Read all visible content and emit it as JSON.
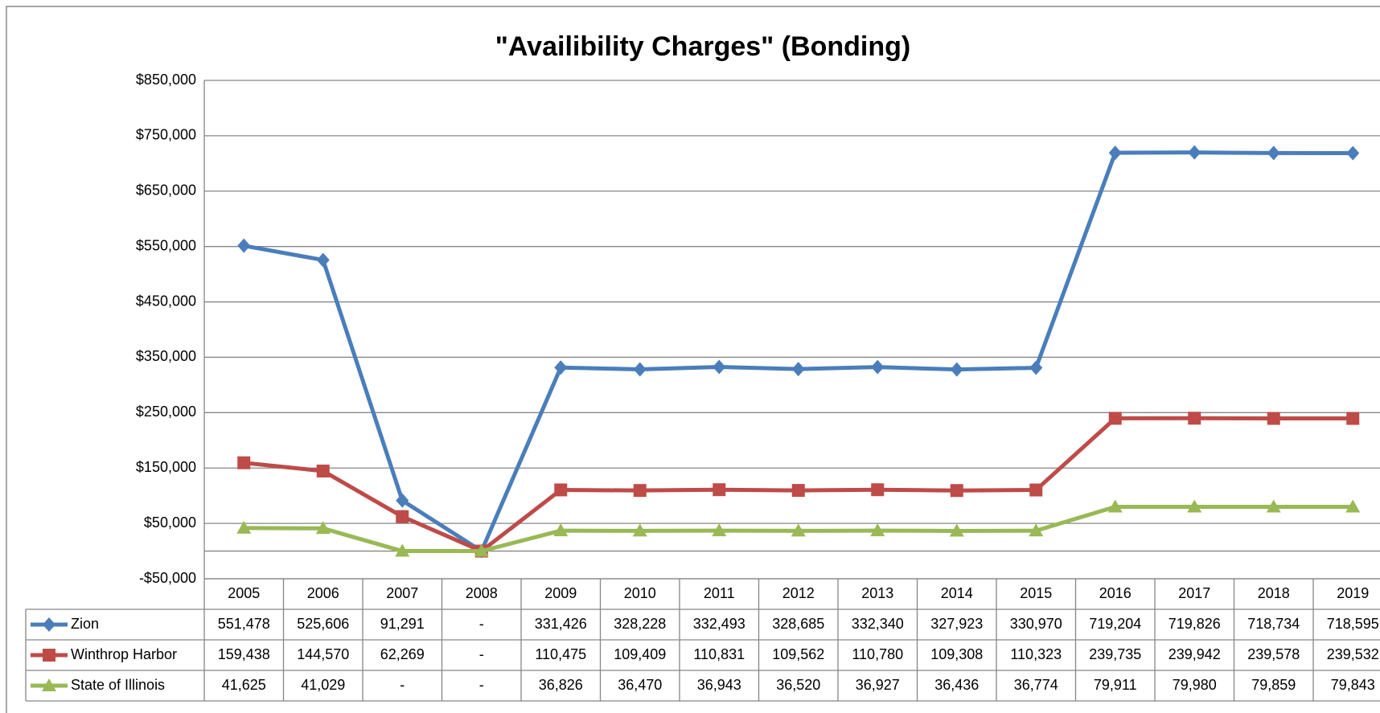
{
  "chart_data": {
    "type": "line",
    "title": "\"Availibility Charges\" (Bonding)",
    "categories": [
      "2005",
      "2006",
      "2007",
      "2008",
      "2009",
      "2010",
      "2011",
      "2012",
      "2013",
      "2014",
      "2015",
      "2016",
      "2017",
      "2018",
      "2019"
    ],
    "series": [
      {
        "name": "Zion",
        "color": "#4a7ebb",
        "marker": "diamond",
        "values": [
          551478,
          525606,
          91291,
          0,
          331426,
          328228,
          332493,
          328685,
          332340,
          327923,
          330970,
          719204,
          719826,
          718734,
          718595
        ],
        "value_labels": [
          "551,478",
          "525,606",
          "91,291",
          "-",
          "331,426",
          "328,228",
          "332,493",
          "328,685",
          "332,340",
          "327,923",
          "330,970",
          "719,204",
          "719,826",
          "718,734",
          "718,595"
        ]
      },
      {
        "name": "Winthrop Harbor",
        "color": "#be4b48",
        "marker": "square",
        "values": [
          159438,
          144570,
          62269,
          0,
          110475,
          109409,
          110831,
          109562,
          110780,
          109308,
          110323,
          239735,
          239942,
          239578,
          239532
        ],
        "value_labels": [
          "159,438",
          "144,570",
          "62,269",
          "-",
          "110,475",
          "109,409",
          "110,831",
          "109,562",
          "110,780",
          "109,308",
          "110,323",
          "239,735",
          "239,942",
          "239,578",
          "239,532"
        ]
      },
      {
        "name": "State of Illinois",
        "color": "#98b954",
        "marker": "triangle",
        "values": [
          41625,
          41029,
          0,
          0,
          36826,
          36470,
          36943,
          36520,
          36927,
          36436,
          36774,
          79911,
          79980,
          79859,
          79843
        ],
        "value_labels": [
          "41,625",
          "41,029",
          "-",
          "-",
          "36,826",
          "36,470",
          "36,943",
          "36,520",
          "36,927",
          "36,436",
          "36,774",
          "79,911",
          "79,980",
          "79,859",
          "79,843"
        ]
      }
    ],
    "ylim": [
      -50000,
      850000
    ],
    "yticks": [
      {
        "value": -50000,
        "label": "-$50,000"
      },
      {
        "value": 50000,
        "label": "$50,000"
      },
      {
        "value": 150000,
        "label": "$150,000"
      },
      {
        "value": 250000,
        "label": "$250,000"
      },
      {
        "value": 350000,
        "label": "$350,000"
      },
      {
        "value": 450000,
        "label": "$450,000"
      },
      {
        "value": 550000,
        "label": "$550,000"
      },
      {
        "value": 650000,
        "label": "$650,000"
      },
      {
        "value": 750000,
        "label": "$750,000"
      },
      {
        "value": 850000,
        "label": "$850,000"
      }
    ],
    "grid": true
  }
}
